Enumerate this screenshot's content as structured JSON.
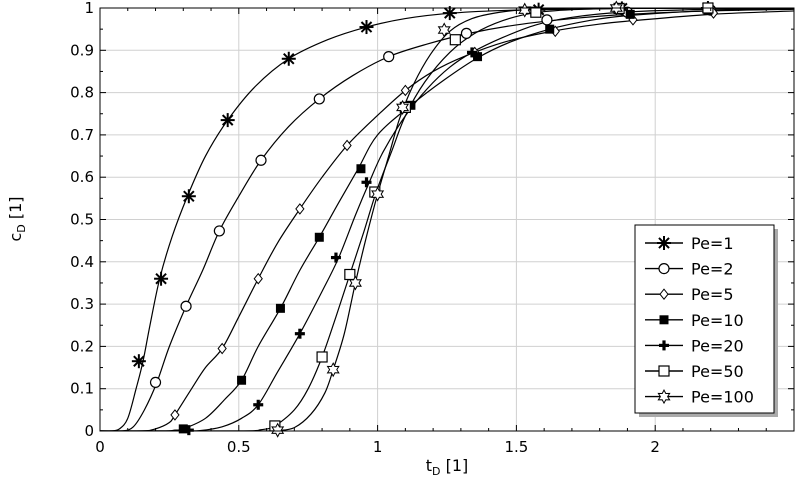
{
  "chart_data": {
    "type": "line",
    "title": "",
    "xlabel": {
      "main": "t",
      "sub": "D",
      "unit": " [1]"
    },
    "ylabel": {
      "main": "c",
      "sub": "D",
      "unit": " [1]"
    },
    "xlim": [
      0,
      2.5
    ],
    "ylim": [
      0,
      1
    ],
    "xticks": [
      0,
      0.5,
      1,
      1.5,
      2
    ],
    "xtick_labels": [
      "0",
      "0.5",
      "1",
      "1.5",
      "2"
    ],
    "yticks": [
      0,
      0.1,
      0.2,
      0.3,
      0.4,
      0.5,
      0.6,
      0.7,
      0.8,
      0.9,
      1
    ],
    "ytick_labels": [
      "0",
      "0.1",
      "0.2",
      "0.3",
      "0.4",
      "0.5",
      "0.6",
      "0.7",
      "0.8",
      "0.9",
      "1"
    ],
    "grid": true,
    "legend_position": "bottom-right",
    "series": [
      {
        "name": "Pe=1",
        "marker": "asterisk",
        "curve": [
          [
            0,
            0
          ],
          [
            0.04,
            0
          ],
          [
            0.07,
            0.005
          ],
          [
            0.1,
            0.03
          ],
          [
            0.13,
            0.1
          ],
          [
            0.155,
            0.165
          ],
          [
            0.18,
            0.25
          ],
          [
            0.215,
            0.36
          ],
          [
            0.26,
            0.46
          ],
          [
            0.315,
            0.555
          ],
          [
            0.38,
            0.65
          ],
          [
            0.46,
            0.735
          ],
          [
            0.56,
            0.815
          ],
          [
            0.68,
            0.88
          ],
          [
            0.82,
            0.925
          ],
          [
            0.96,
            0.955
          ],
          [
            1.1,
            0.975
          ],
          [
            1.27,
            0.988
          ],
          [
            1.5,
            0.995
          ],
          [
            1.9,
            0.999
          ],
          [
            2.5,
            1.0
          ]
        ],
        "markers": [
          [
            0.14,
            0.165
          ],
          [
            0.22,
            0.36
          ],
          [
            0.32,
            0.555
          ],
          [
            0.46,
            0.735
          ],
          [
            0.68,
            0.88
          ],
          [
            0.96,
            0.955
          ],
          [
            1.26,
            0.988
          ],
          [
            1.58,
            0.996
          ],
          [
            1.88,
            0.999
          ],
          [
            2.19,
            1.0
          ]
        ]
      },
      {
        "name": "Pe=2",
        "marker": "circle",
        "curve": [
          [
            0,
            0
          ],
          [
            0.08,
            0
          ],
          [
            0.12,
            0.01
          ],
          [
            0.16,
            0.05
          ],
          [
            0.205,
            0.115
          ],
          [
            0.25,
            0.2
          ],
          [
            0.31,
            0.295
          ],
          [
            0.37,
            0.38
          ],
          [
            0.43,
            0.473
          ],
          [
            0.5,
            0.555
          ],
          [
            0.58,
            0.64
          ],
          [
            0.68,
            0.72
          ],
          [
            0.79,
            0.785
          ],
          [
            0.91,
            0.84
          ],
          [
            1.04,
            0.885
          ],
          [
            1.18,
            0.915
          ],
          [
            1.33,
            0.94
          ],
          [
            1.5,
            0.96
          ],
          [
            1.7,
            0.975
          ],
          [
            1.9,
            0.985
          ],
          [
            2.2,
            0.993
          ],
          [
            2.5,
            0.997
          ]
        ],
        "markers": [
          [
            0.2,
            0.115
          ],
          [
            0.31,
            0.295
          ],
          [
            0.43,
            0.473
          ],
          [
            0.58,
            0.64
          ],
          [
            0.79,
            0.785
          ],
          [
            1.04,
            0.885
          ],
          [
            1.32,
            0.94
          ],
          [
            1.61,
            0.972
          ],
          [
            1.9,
            0.99
          ],
          [
            2.2,
            0.995
          ]
        ]
      },
      {
        "name": "Pe=5",
        "marker": "diamond",
        "curve": [
          [
            0,
            0
          ],
          [
            0.15,
            0
          ],
          [
            0.2,
            0.005
          ],
          [
            0.25,
            0.02
          ],
          [
            0.27,
            0.038
          ],
          [
            0.33,
            0.1
          ],
          [
            0.38,
            0.15
          ],
          [
            0.44,
            0.195
          ],
          [
            0.5,
            0.27
          ],
          [
            0.57,
            0.36
          ],
          [
            0.64,
            0.445
          ],
          [
            0.72,
            0.525
          ],
          [
            0.8,
            0.6
          ],
          [
            0.89,
            0.675
          ],
          [
            0.99,
            0.74
          ],
          [
            1.1,
            0.805
          ],
          [
            1.2,
            0.85
          ],
          [
            1.31,
            0.885
          ],
          [
            1.46,
            0.92
          ],
          [
            1.63,
            0.945
          ],
          [
            1.8,
            0.962
          ],
          [
            1.92,
            0.97
          ],
          [
            2.2,
            0.985
          ],
          [
            2.5,
            0.993
          ]
        ],
        "markers": [
          [
            0.27,
            0.038
          ],
          [
            0.44,
            0.195
          ],
          [
            0.57,
            0.36
          ],
          [
            0.72,
            0.525
          ],
          [
            0.89,
            0.675
          ],
          [
            1.1,
            0.805
          ],
          [
            1.35,
            0.895
          ],
          [
            1.64,
            0.945
          ],
          [
            1.92,
            0.972
          ],
          [
            2.21,
            0.988
          ]
        ]
      },
      {
        "name": "Pe=10",
        "marker": "square-filled",
        "curve": [
          [
            0,
            0
          ],
          [
            0.22,
            0
          ],
          [
            0.27,
            0.002
          ],
          [
            0.3,
            0.005
          ],
          [
            0.38,
            0.03
          ],
          [
            0.45,
            0.075
          ],
          [
            0.51,
            0.12
          ],
          [
            0.57,
            0.2
          ],
          [
            0.65,
            0.29
          ],
          [
            0.72,
            0.38
          ],
          [
            0.79,
            0.458
          ],
          [
            0.86,
            0.54
          ],
          [
            0.93,
            0.62
          ],
          [
            1.0,
            0.7
          ],
          [
            1.12,
            0.77
          ],
          [
            1.24,
            0.83
          ],
          [
            1.36,
            0.882
          ],
          [
            1.48,
            0.92
          ],
          [
            1.62,
            0.95
          ],
          [
            1.76,
            0.97
          ],
          [
            1.9,
            0.982
          ],
          [
            2.2,
            0.994
          ],
          [
            2.5,
            0.998
          ]
        ],
        "markers": [
          [
            0.3,
            0.005
          ],
          [
            0.51,
            0.12
          ],
          [
            0.65,
            0.29
          ],
          [
            0.79,
            0.458
          ],
          [
            0.94,
            0.62
          ],
          [
            1.12,
            0.77
          ],
          [
            1.36,
            0.885
          ],
          [
            1.62,
            0.95
          ],
          [
            1.91,
            0.985
          ],
          [
            2.19,
            0.994
          ]
        ]
      },
      {
        "name": "Pe=20",
        "marker": "plus-filled",
        "curve": [
          [
            0,
            0
          ],
          [
            0.3,
            0
          ],
          [
            0.36,
            0.001
          ],
          [
            0.44,
            0.01
          ],
          [
            0.51,
            0.03
          ],
          [
            0.57,
            0.062
          ],
          [
            0.64,
            0.14
          ],
          [
            0.72,
            0.23
          ],
          [
            0.8,
            0.33
          ],
          [
            0.86,
            0.41
          ],
          [
            0.92,
            0.51
          ],
          [
            0.97,
            0.588
          ],
          [
            1.02,
            0.66
          ],
          [
            1.1,
            0.745
          ],
          [
            1.18,
            0.81
          ],
          [
            1.26,
            0.86
          ],
          [
            1.34,
            0.895
          ],
          [
            1.45,
            0.93
          ],
          [
            1.57,
            0.96
          ],
          [
            1.7,
            0.978
          ],
          [
            1.88,
            0.99
          ],
          [
            2.2,
            0.997
          ],
          [
            2.5,
            0.999
          ]
        ],
        "markers": [
          [
            0.32,
            0.002
          ],
          [
            0.57,
            0.062
          ],
          [
            0.72,
            0.23
          ],
          [
            0.85,
            0.41
          ],
          [
            0.96,
            0.588
          ],
          [
            1.1,
            0.765
          ],
          [
            1.34,
            0.895
          ],
          [
            1.57,
            0.99
          ],
          [
            1.88,
            0.997
          ],
          [
            2.19,
            0.999
          ]
        ]
      },
      {
        "name": "Pe=50",
        "marker": "square-open",
        "curve": [
          [
            0,
            0
          ],
          [
            0.5,
            0
          ],
          [
            0.58,
            0.003
          ],
          [
            0.63,
            0.012
          ],
          [
            0.7,
            0.05
          ],
          [
            0.75,
            0.1
          ],
          [
            0.8,
            0.175
          ],
          [
            0.85,
            0.27
          ],
          [
            0.9,
            0.37
          ],
          [
            0.95,
            0.47
          ],
          [
            0.995,
            0.565
          ],
          [
            1.05,
            0.66
          ],
          [
            1.1,
            0.745
          ],
          [
            1.17,
            0.825
          ],
          [
            1.26,
            0.895
          ],
          [
            1.35,
            0.94
          ],
          [
            1.45,
            0.97
          ],
          [
            1.56,
            0.988
          ],
          [
            1.7,
            0.996
          ],
          [
            1.9,
            0.999
          ],
          [
            2.5,
            1.0
          ]
        ],
        "markers": [
          [
            0.63,
            0.012
          ],
          [
            0.8,
            0.175
          ],
          [
            0.9,
            0.37
          ],
          [
            0.99,
            0.565
          ],
          [
            1.1,
            0.765
          ],
          [
            1.28,
            0.925
          ],
          [
            1.57,
            0.99
          ],
          [
            1.87,
            0.999
          ],
          [
            2.19,
            1.0
          ]
        ]
      },
      {
        "name": "Pe=100",
        "marker": "star-open",
        "curve": [
          [
            0,
            0
          ],
          [
            0.6,
            0
          ],
          [
            0.64,
            0.001
          ],
          [
            0.7,
            0.008
          ],
          [
            0.76,
            0.04
          ],
          [
            0.81,
            0.09
          ],
          [
            0.84,
            0.145
          ],
          [
            0.88,
            0.23
          ],
          [
            0.92,
            0.35
          ],
          [
            0.96,
            0.46
          ],
          [
            1.0,
            0.56
          ],
          [
            1.04,
            0.65
          ],
          [
            1.08,
            0.74
          ],
          [
            1.13,
            0.82
          ],
          [
            1.19,
            0.89
          ],
          [
            1.26,
            0.945
          ],
          [
            1.34,
            0.975
          ],
          [
            1.44,
            0.99
          ],
          [
            1.56,
            0.997
          ],
          [
            1.8,
            1.0
          ],
          [
            2.5,
            1.0
          ]
        ],
        "markers": [
          [
            0.64,
            0.002
          ],
          [
            0.84,
            0.145
          ],
          [
            0.92,
            0.35
          ],
          [
            1.0,
            0.56
          ],
          [
            1.09,
            0.765
          ],
          [
            1.24,
            0.948
          ],
          [
            1.53,
            0.995
          ],
          [
            1.86,
            1.0
          ]
        ]
      }
    ]
  }
}
